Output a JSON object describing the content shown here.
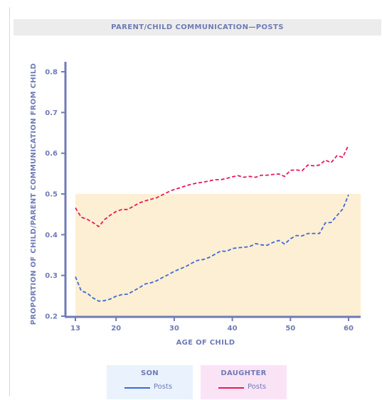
{
  "title": "PARENT/CHILD COMMUNICATION—POSTS",
  "chart_data": {
    "type": "line",
    "title": "PARENT/CHILD COMMUNICATION—POSTS",
    "xlabel": "AGE OF CHILD",
    "ylabel": "PROPORTION OF CHILD/PARENT COMMUNICATION FROM CHILD",
    "xlim": [
      13,
      61
    ],
    "ylim": [
      0.2,
      0.8
    ],
    "x_ticks": [
      "13",
      "20",
      "30",
      "40",
      "50",
      "60"
    ],
    "y_ticks": [
      "0.2",
      "0.3",
      "0.4",
      "0.5",
      "0.6",
      "0.7",
      "0.8"
    ],
    "highlight_band": {
      "y_from": 0.2,
      "y_to": 0.5,
      "color": "#fdefd3"
    },
    "grid": false,
    "line_style": "dashed",
    "x": [
      13,
      14,
      15,
      16,
      17,
      18,
      19,
      20,
      21,
      22,
      23,
      24,
      25,
      26,
      27,
      28,
      29,
      30,
      31,
      32,
      33,
      34,
      35,
      36,
      37,
      38,
      39,
      40,
      41,
      42,
      43,
      44,
      45,
      46,
      47,
      48,
      49,
      50,
      51,
      52,
      53,
      54,
      55,
      56,
      57,
      58,
      59,
      60
    ],
    "series": [
      {
        "legend_group": "SON",
        "name": "Posts",
        "color": "#3f68d6",
        "values": [
          0.297,
          0.262,
          0.257,
          0.245,
          0.237,
          0.238,
          0.242,
          0.249,
          0.253,
          0.254,
          0.262,
          0.27,
          0.279,
          0.282,
          0.287,
          0.295,
          0.302,
          0.31,
          0.316,
          0.322,
          0.33,
          0.337,
          0.339,
          0.344,
          0.352,
          0.36,
          0.359,
          0.366,
          0.368,
          0.369,
          0.371,
          0.378,
          0.375,
          0.374,
          0.381,
          0.386,
          0.377,
          0.39,
          0.398,
          0.397,
          0.403,
          0.403,
          0.403,
          0.429,
          0.43,
          0.447,
          0.463,
          0.498
        ]
      },
      {
        "legend_group": "DAUGHTER",
        "name": "Posts",
        "color": "#e8195e",
        "values": [
          0.466,
          0.443,
          0.438,
          0.43,
          0.42,
          0.437,
          0.448,
          0.457,
          0.462,
          0.462,
          0.47,
          0.478,
          0.483,
          0.487,
          0.491,
          0.498,
          0.505,
          0.511,
          0.515,
          0.52,
          0.524,
          0.527,
          0.529,
          0.532,
          0.535,
          0.535,
          0.538,
          0.542,
          0.545,
          0.541,
          0.543,
          0.541,
          0.546,
          0.546,
          0.548,
          0.549,
          0.543,
          0.558,
          0.559,
          0.557,
          0.571,
          0.569,
          0.571,
          0.583,
          0.577,
          0.594,
          0.59,
          0.62
        ]
      }
    ]
  },
  "legend": {
    "son": {
      "title": "SON",
      "label": "Posts",
      "color": "#3f68d6"
    },
    "daughter": {
      "title": "DAUGHTER",
      "label": "Posts",
      "color": "#e8195e"
    }
  },
  "colors": {
    "axis": "#6f7bb5",
    "band": "#fdefd3",
    "title_bg": "#ececec"
  }
}
